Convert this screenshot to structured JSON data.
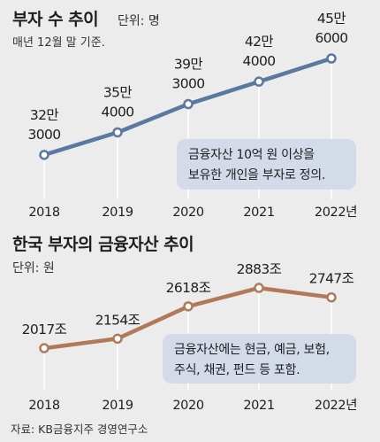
{
  "chart_data": [
    {
      "type": "line",
      "title": "부자 수 추이",
      "unit": "단위: 명",
      "note": "매년 12월 말 기준.",
      "categories": [
        "2018",
        "2019",
        "2020",
        "2021",
        "2022년"
      ],
      "series": [
        {
          "values": [
            323000,
            354000,
            393000,
            424000,
            456000
          ]
        }
      ],
      "value_labels": [
        [
          "32만",
          "3000"
        ],
        [
          "35만",
          "4000"
        ],
        [
          "39만",
          "3000"
        ],
        [
          "42만",
          "4000"
        ],
        [
          "45만",
          "6000"
        ]
      ],
      "annotation": [
        "금융자산 10억 원 이상을",
        "보유한 개인을 부자로 정의."
      ],
      "ylim": [
        280000,
        500000
      ],
      "color": "#5b78a3"
    },
    {
      "type": "line",
      "title": "한국 부자의 금융자산 추이",
      "unit": "단위: 원",
      "categories": [
        "2018",
        "2019",
        "2020",
        "2021",
        "2022년"
      ],
      "series": [
        {
          "values": [
            2017,
            2154,
            2618,
            2883,
            2747
          ]
        }
      ],
      "value_labels": [
        "2017조",
        "2154조",
        "2618조",
        "2883조",
        "2747조"
      ],
      "annotation": [
        "금융자산에는 현금, 예금, 보험,",
        "주식, 채권, 펀드 등 포함."
      ],
      "ylim": [
        1700,
        3100
      ],
      "color": "#b07a5a"
    }
  ],
  "source": "자료: KB금융지주 경영연구소",
  "colors": {
    "background": "#ececec",
    "grid": "#ffffff",
    "box": "#d3dbe8",
    "marker_fill": "#ffffff"
  }
}
